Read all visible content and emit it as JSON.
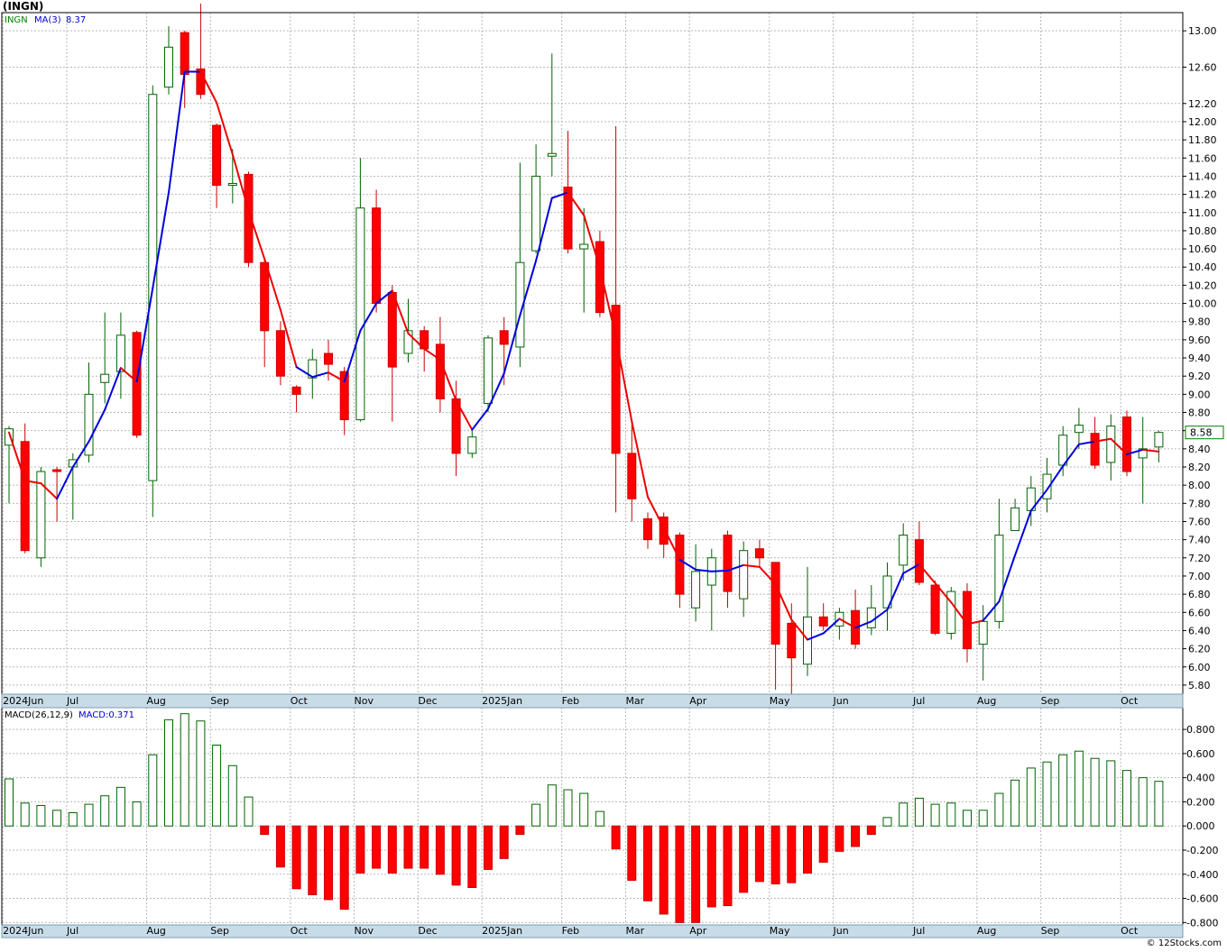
{
  "header": {
    "title": "(INGN)"
  },
  "footer": {
    "credit": "© 12Stocks.com"
  },
  "chart_data": [
    {
      "type": "candlestick",
      "legend": {
        "symbol": "INGN",
        "ma_label": "MA(3)",
        "ma_value": "8.37"
      },
      "last_price_label": "8.58",
      "ylim": [
        5.7,
        13.2
      ],
      "y_ticks": [
        "5.80",
        "6.00",
        "6.20",
        "6.40",
        "6.60",
        "6.80",
        "7.00",
        "7.20",
        "7.40",
        "7.60",
        "7.80",
        "8.00",
        "8.20",
        "8.40",
        "8.60",
        "8.80",
        "9.00",
        "9.20",
        "9.40",
        "9.60",
        "9.80",
        "10.00",
        "10.20",
        "10.40",
        "10.60",
        "10.80",
        "11.00",
        "11.20",
        "11.40",
        "11.60",
        "11.80",
        "12.00",
        "12.20",
        "12.60",
        "13.00"
      ],
      "y_tick_values": [
        5.8,
        6.0,
        6.2,
        6.4,
        6.6,
        6.8,
        7.0,
        7.2,
        7.4,
        7.6,
        7.8,
        8.0,
        8.2,
        8.4,
        8.6,
        8.8,
        9.0,
        9.2,
        9.4,
        9.6,
        9.8,
        10.0,
        10.2,
        10.4,
        10.6,
        10.8,
        11.0,
        11.2,
        11.4,
        11.6,
        11.8,
        12.0,
        12.2,
        12.6,
        13.0
      ],
      "months": [
        {
          "label": "2024Jun",
          "i": 0
        },
        {
          "label": "Jul",
          "i": 4
        },
        {
          "label": "Aug",
          "i": 9
        },
        {
          "label": "Sep",
          "i": 13
        },
        {
          "label": "Oct",
          "i": 18
        },
        {
          "label": "Nov",
          "i": 22
        },
        {
          "label": "Dec",
          "i": 26
        },
        {
          "label": "2025Jan",
          "i": 30
        },
        {
          "label": "Feb",
          "i": 35
        },
        {
          "label": "Mar",
          "i": 39
        },
        {
          "label": "Apr",
          "i": 43
        },
        {
          "label": "May",
          "i": 48
        },
        {
          "label": "Jun",
          "i": 52
        },
        {
          "label": "Jul",
          "i": 57
        },
        {
          "label": "Aug",
          "i": 61
        },
        {
          "label": "Sep",
          "i": 65
        },
        {
          "label": "Oct",
          "i": 70
        }
      ],
      "candles": [
        {
          "o": 8.44,
          "h": 8.65,
          "l": 7.8,
          "c": 8.62
        },
        {
          "o": 8.48,
          "h": 8.68,
          "l": 7.25,
          "c": 7.28
        },
        {
          "o": 7.2,
          "h": 8.2,
          "l": 7.1,
          "c": 8.15
        },
        {
          "o": 8.17,
          "h": 8.2,
          "l": 7.6,
          "c": 8.15
        },
        {
          "o": 8.2,
          "h": 8.35,
          "l": 7.62,
          "c": 8.28
        },
        {
          "o": 8.33,
          "h": 9.35,
          "l": 8.25,
          "c": 9.0
        },
        {
          "o": 9.13,
          "h": 9.9,
          "l": 8.9,
          "c": 9.22
        },
        {
          "o": 9.25,
          "h": 9.9,
          "l": 8.95,
          "c": 9.65
        },
        {
          "o": 9.68,
          "h": 9.7,
          "l": 8.52,
          "c": 8.55
        },
        {
          "o": 8.05,
          "h": 12.4,
          "l": 7.65,
          "c": 12.3
        },
        {
          "o": 12.38,
          "h": 13.05,
          "l": 12.3,
          "c": 12.82
        },
        {
          "o": 12.98,
          "h": 13.0,
          "l": 12.15,
          "c": 12.52
        },
        {
          "o": 12.58,
          "h": 13.3,
          "l": 12.25,
          "c": 12.3
        },
        {
          "o": 11.96,
          "h": 11.98,
          "l": 11.05,
          "c": 11.3
        },
        {
          "o": 11.3,
          "h": 11.7,
          "l": 11.1,
          "c": 11.32
        },
        {
          "o": 11.42,
          "h": 11.45,
          "l": 10.4,
          "c": 10.45
        },
        {
          "o": 10.45,
          "h": 10.48,
          "l": 9.3,
          "c": 9.7
        },
        {
          "o": 9.7,
          "h": 9.8,
          "l": 9.1,
          "c": 9.2
        },
        {
          "o": 9.08,
          "h": 9.1,
          "l": 8.8,
          "c": 9.0
        },
        {
          "o": 9.18,
          "h": 9.5,
          "l": 8.95,
          "c": 9.38
        },
        {
          "o": 9.45,
          "h": 9.6,
          "l": 9.15,
          "c": 9.33
        },
        {
          "o": 9.25,
          "h": 9.3,
          "l": 8.55,
          "c": 8.72
        },
        {
          "o": 8.72,
          "h": 11.6,
          "l": 8.7,
          "c": 11.05
        },
        {
          "o": 11.05,
          "h": 11.25,
          "l": 9.9,
          "c": 10.0
        },
        {
          "o": 10.12,
          "h": 10.2,
          "l": 8.7,
          "c": 9.3
        },
        {
          "o": 9.45,
          "h": 10.05,
          "l": 9.35,
          "c": 9.7
        },
        {
          "o": 9.7,
          "h": 9.75,
          "l": 9.25,
          "c": 9.5
        },
        {
          "o": 9.55,
          "h": 9.85,
          "l": 8.8,
          "c": 8.95
        },
        {
          "o": 8.95,
          "h": 9.15,
          "l": 8.1,
          "c": 8.35
        },
        {
          "o": 8.35,
          "h": 8.6,
          "l": 8.3,
          "c": 8.53
        },
        {
          "o": 8.9,
          "h": 9.65,
          "l": 8.8,
          "c": 9.62
        },
        {
          "o": 9.7,
          "h": 9.85,
          "l": 9.1,
          "c": 9.55
        },
        {
          "o": 9.52,
          "h": 11.55,
          "l": 9.3,
          "c": 10.45
        },
        {
          "o": 10.58,
          "h": 11.75,
          "l": 10.55,
          "c": 11.4
        },
        {
          "o": 11.62,
          "h": 12.75,
          "l": 11.4,
          "c": 11.65
        },
        {
          "o": 11.28,
          "h": 11.9,
          "l": 10.55,
          "c": 10.6
        },
        {
          "o": 10.6,
          "h": 11.05,
          "l": 9.9,
          "c": 10.65
        },
        {
          "o": 10.68,
          "h": 10.8,
          "l": 9.85,
          "c": 9.9
        },
        {
          "o": 9.98,
          "h": 11.95,
          "l": 7.7,
          "c": 8.35
        },
        {
          "o": 8.35,
          "h": 8.7,
          "l": 7.6,
          "c": 7.85
        },
        {
          "o": 7.63,
          "h": 7.7,
          "l": 7.3,
          "c": 7.4
        },
        {
          "o": 7.65,
          "h": 7.7,
          "l": 7.2,
          "c": 7.35
        },
        {
          "o": 7.45,
          "h": 7.48,
          "l": 6.65,
          "c": 6.8
        },
        {
          "o": 6.65,
          "h": 7.35,
          "l": 6.5,
          "c": 7.05
        },
        {
          "o": 6.9,
          "h": 7.3,
          "l": 6.4,
          "c": 7.2
        },
        {
          "o": 7.45,
          "h": 7.5,
          "l": 6.65,
          "c": 6.83
        },
        {
          "o": 6.75,
          "h": 7.38,
          "l": 6.55,
          "c": 7.28
        },
        {
          "o": 7.3,
          "h": 7.4,
          "l": 7.1,
          "c": 7.2
        },
        {
          "o": 7.15,
          "h": 7.15,
          "l": 5.75,
          "c": 6.25
        },
        {
          "o": 6.48,
          "h": 6.7,
          "l": 5.7,
          "c": 6.1
        },
        {
          "o": 6.03,
          "h": 7.1,
          "l": 5.9,
          "c": 6.55
        },
        {
          "o": 6.55,
          "h": 6.7,
          "l": 6.4,
          "c": 6.45
        },
        {
          "o": 6.45,
          "h": 6.65,
          "l": 6.3,
          "c": 6.6
        },
        {
          "o": 6.62,
          "h": 6.85,
          "l": 6.2,
          "c": 6.25
        },
        {
          "o": 6.43,
          "h": 6.9,
          "l": 6.35,
          "c": 6.65
        },
        {
          "o": 6.65,
          "h": 7.15,
          "l": 6.4,
          "c": 7.0
        },
        {
          "o": 7.12,
          "h": 7.58,
          "l": 6.95,
          "c": 7.45
        },
        {
          "o": 7.4,
          "h": 7.6,
          "l": 6.9,
          "c": 6.93
        },
        {
          "o": 6.9,
          "h": 6.95,
          "l": 6.35,
          "c": 6.37
        },
        {
          "o": 6.37,
          "h": 6.88,
          "l": 6.3,
          "c": 6.83
        },
        {
          "o": 6.83,
          "h": 6.92,
          "l": 6.05,
          "c": 6.2
        },
        {
          "o": 6.25,
          "h": 6.68,
          "l": 5.85,
          "c": 6.5
        },
        {
          "o": 6.5,
          "h": 7.85,
          "l": 6.42,
          "c": 7.45
        },
        {
          "o": 7.5,
          "h": 7.85,
          "l": 7.5,
          "c": 7.75
        },
        {
          "o": 7.72,
          "h": 8.1,
          "l": 7.55,
          "c": 7.97
        },
        {
          "o": 7.85,
          "h": 8.3,
          "l": 7.7,
          "c": 8.12
        },
        {
          "o": 8.22,
          "h": 8.65,
          "l": 8.1,
          "c": 8.55
        },
        {
          "o": 8.58,
          "h": 8.85,
          "l": 8.4,
          "c": 8.66
        },
        {
          "o": 8.57,
          "h": 8.75,
          "l": 8.18,
          "c": 8.22
        },
        {
          "o": 8.25,
          "h": 8.78,
          "l": 8.05,
          "c": 8.65
        },
        {
          "o": 8.75,
          "h": 8.82,
          "l": 8.1,
          "c": 8.15
        },
        {
          "o": 8.3,
          "h": 8.75,
          "l": 7.8,
          "c": 8.4
        },
        {
          "o": 8.42,
          "h": 8.6,
          "l": 8.25,
          "c": 8.58
        }
      ],
      "ma": [
        8.58,
        8.05,
        8.02,
        7.85,
        8.2,
        8.48,
        8.83,
        9.29,
        9.14,
        10.17,
        11.22,
        12.55,
        12.55,
        12.21,
        11.64,
        11.02,
        10.49,
        9.93,
        9.3,
        9.19,
        9.24,
        9.14,
        9.7,
        10.0,
        10.14,
        9.67,
        9.5,
        9.38,
        8.93,
        8.61,
        8.84,
        9.23,
        9.87,
        10.47,
        11.16,
        11.22,
        10.97,
        10.39,
        9.63,
        8.7,
        7.87,
        7.53,
        7.18,
        7.07,
        7.05,
        7.06,
        7.12,
        7.1,
        6.91,
        6.52,
        6.3,
        6.37,
        6.53,
        6.43,
        6.5,
        6.63,
        7.03,
        7.13,
        6.92,
        6.71,
        6.47,
        6.51,
        6.72,
        7.23,
        7.72,
        7.95,
        8.21,
        8.45,
        8.48,
        8.51,
        8.34,
        8.39,
        8.37
      ],
      "ma_colors": [
        "r",
        "r",
        "r",
        "b",
        "b",
        "b",
        "b",
        "r",
        "b",
        "b",
        "b",
        "b",
        "r",
        "r",
        "r",
        "r",
        "r",
        "r",
        "b",
        "b",
        "r",
        "b",
        "b",
        "b",
        "r",
        "r",
        "r",
        "r",
        "r",
        "b",
        "b",
        "b",
        "b",
        "b",
        "b",
        "r",
        "r",
        "r",
        "r",
        "r",
        "r",
        "r",
        "b",
        "b",
        "b",
        "b",
        "r",
        "r",
        "r",
        "r",
        "b",
        "b",
        "r",
        "b",
        "b",
        "b",
        "b",
        "r",
        "r",
        "r",
        "r",
        "b",
        "b",
        "b",
        "b",
        "b",
        "b",
        "b",
        "r",
        "r",
        "b",
        "r"
      ]
    },
    {
      "type": "bar",
      "legend": {
        "name": "MACD(26,12,9)",
        "value_label": "MACD:0.371"
      },
      "ylim": [
        -0.82,
        0.98
      ],
      "y_ticks": [
        "0.800",
        "0.600",
        "0.400",
        "0.200",
        "0.000",
        "-0.200",
        "-0.400",
        "-0.600",
        "-0.800"
      ],
      "y_tick_values": [
        0.8,
        0.6,
        0.4,
        0.2,
        0.0,
        -0.2,
        -0.4,
        -0.6,
        -0.8
      ],
      "values": [
        0.39,
        0.19,
        0.17,
        0.13,
        0.11,
        0.18,
        0.25,
        0.32,
        0.2,
        0.59,
        0.88,
        0.93,
        0.87,
        0.67,
        0.5,
        0.24,
        -0.07,
        -0.34,
        -0.52,
        -0.57,
        -0.61,
        -0.69,
        -0.39,
        -0.35,
        -0.39,
        -0.35,
        -0.35,
        -0.4,
        -0.49,
        -0.51,
        -0.36,
        -0.27,
        -0.07,
        0.18,
        0.34,
        0.3,
        0.27,
        0.12,
        -0.19,
        -0.45,
        -0.62,
        -0.73,
        -0.8,
        -0.8,
        -0.67,
        -0.66,
        -0.55,
        -0.46,
        -0.48,
        -0.47,
        -0.39,
        -0.3,
        -0.21,
        -0.17,
        -0.07,
        0.07,
        0.19,
        0.23,
        0.18,
        0.19,
        0.13,
        0.13,
        0.27,
        0.38,
        0.48,
        0.53,
        0.59,
        0.62,
        0.56,
        0.54,
        0.46,
        0.4,
        0.37
      ]
    }
  ]
}
